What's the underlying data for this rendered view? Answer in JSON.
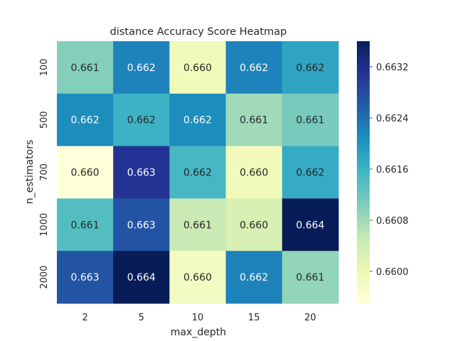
{
  "chart_data": {
    "type": "heatmap",
    "title": "distance Accuracy Score Heatmap",
    "xlabel": "max_depth",
    "ylabel": "n_estimators",
    "x_categories": [
      "2",
      "5",
      "10",
      "15",
      "20"
    ],
    "y_categories": [
      "100",
      "500",
      "700",
      "1000",
      "2000"
    ],
    "values": [
      [
        0.661,
        0.6622,
        0.6599,
        0.6622,
        0.6618
      ],
      [
        0.6621,
        0.6616,
        0.6621,
        0.6608,
        0.6611
      ],
      [
        0.6595,
        0.6631,
        0.6615,
        0.6599,
        0.6617
      ],
      [
        0.6614,
        0.6627,
        0.6605,
        0.6603,
        0.6636
      ],
      [
        0.6627,
        0.6636,
        0.6598,
        0.6622,
        0.6609
      ]
    ],
    "value_labels": [
      [
        "0.661",
        "0.662",
        "0.660",
        "0.662",
        "0.662"
      ],
      [
        "0.662",
        "0.662",
        "0.662",
        "0.661",
        "0.661"
      ],
      [
        "0.660",
        "0.663",
        "0.662",
        "0.660",
        "0.662"
      ],
      [
        "0.661",
        "0.663",
        "0.661",
        "0.660",
        "0.664"
      ],
      [
        "0.663",
        "0.664",
        "0.660",
        "0.662",
        "0.661"
      ]
    ],
    "colormap": "YlGnBu",
    "colorbar": {
      "vmin": 0.6595,
      "vmax": 0.6636,
      "ticks": [
        0.66,
        0.6608,
        0.6616,
        0.6624,
        0.6632
      ],
      "tick_labels": [
        "0.6600",
        "0.6608",
        "0.6616",
        "0.6624",
        "0.6632"
      ]
    },
    "grid": false,
    "legend": "colorbar-right"
  }
}
